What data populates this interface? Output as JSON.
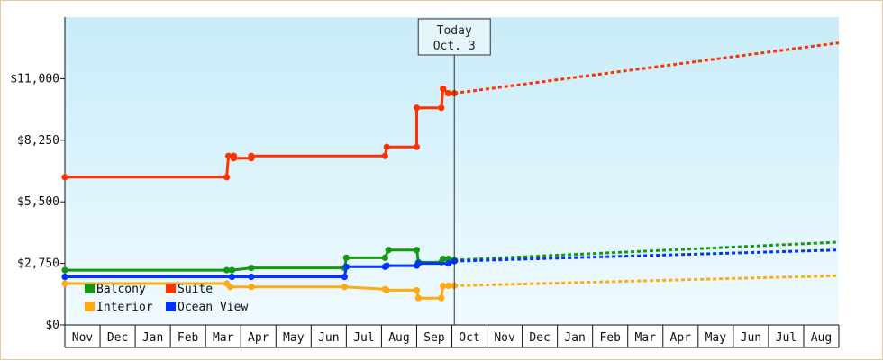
{
  "chart_data": {
    "type": "line",
    "title": "",
    "xlabel": "",
    "ylabel": "",
    "ylim": [
      0,
      13750
    ],
    "y_ticks": [
      "$0",
      "$2,750",
      "$5,500",
      "$8,250",
      "$11,000"
    ],
    "y_tick_values": [
      0,
      2750,
      5500,
      8250,
      11000
    ],
    "x_month_labels": [
      "Nov",
      "Dec",
      "Jan",
      "Feb",
      "Mar",
      "Apr",
      "May",
      "Jun",
      "Jul",
      "Aug",
      "Sep",
      "Oct",
      "Nov",
      "Dec",
      "Jan",
      "Feb",
      "Mar",
      "Apr",
      "May",
      "Jun",
      "Jul",
      "Aug"
    ],
    "x_unit": "months from start of Nov",
    "today_marker": {
      "line1": "Today",
      "line2": "Oct. 3",
      "x": 11.07
    },
    "legend_position": "bottom-left",
    "grid": false,
    "series": [
      {
        "name": "Balcony",
        "color": "#119911",
        "points": [
          [
            0.0,
            2450
          ],
          [
            4.6,
            2450
          ],
          [
            4.75,
            2450
          ],
          [
            5.3,
            2550
          ],
          [
            7.95,
            2550
          ],
          [
            8.0,
            3000
          ],
          [
            9.1,
            3000
          ],
          [
            9.2,
            3350
          ],
          [
            10.0,
            3350
          ],
          [
            10.05,
            2800
          ],
          [
            10.7,
            2800
          ],
          [
            10.75,
            2950
          ],
          [
            10.9,
            2950
          ],
          [
            11.07,
            2900
          ]
        ],
        "forecast": [
          [
            11.07,
            2900
          ],
          [
            22.0,
            3700
          ]
        ]
      },
      {
        "name": "Suite",
        "color": "#ff3300",
        "points": [
          [
            0.0,
            6600
          ],
          [
            4.6,
            6600
          ],
          [
            4.65,
            7550
          ],
          [
            4.8,
            7550
          ],
          [
            4.8,
            7450
          ],
          [
            5.3,
            7450
          ],
          [
            5.3,
            7550
          ],
          [
            9.1,
            7550
          ],
          [
            9.15,
            7950
          ],
          [
            10.0,
            7950
          ],
          [
            10.0,
            9700
          ],
          [
            10.7,
            9700
          ],
          [
            10.75,
            10550
          ],
          [
            10.9,
            10350
          ],
          [
            11.07,
            10350
          ]
        ],
        "forecast": [
          [
            11.07,
            10350
          ],
          [
            22.0,
            12600
          ]
        ]
      },
      {
        "name": "Interior",
        "color": "#ffaa11",
        "points": [
          [
            0.0,
            1850
          ],
          [
            4.6,
            1850
          ],
          [
            4.7,
            1700
          ],
          [
            5.3,
            1700
          ],
          [
            7.95,
            1700
          ],
          [
            9.1,
            1600
          ],
          [
            9.15,
            1550
          ],
          [
            10.0,
            1550
          ],
          [
            10.05,
            1200
          ],
          [
            10.7,
            1200
          ],
          [
            10.75,
            1750
          ],
          [
            10.9,
            1750
          ],
          [
            11.07,
            1750
          ]
        ],
        "forecast": [
          [
            11.07,
            1750
          ],
          [
            22.0,
            2200
          ]
        ]
      },
      {
        "name": "Ocean View",
        "color": "#0033ff",
        "points": [
          [
            0.0,
            2150
          ],
          [
            4.75,
            2150
          ],
          [
            5.3,
            2150
          ],
          [
            7.95,
            2150
          ],
          [
            8.0,
            2600
          ],
          [
            9.1,
            2600
          ],
          [
            9.15,
            2650
          ],
          [
            10.0,
            2650
          ],
          [
            10.05,
            2750
          ],
          [
            10.9,
            2750
          ],
          [
            11.07,
            2850
          ]
        ],
        "forecast": [
          [
            11.07,
            2850
          ],
          [
            22.0,
            3350
          ]
        ]
      }
    ]
  }
}
